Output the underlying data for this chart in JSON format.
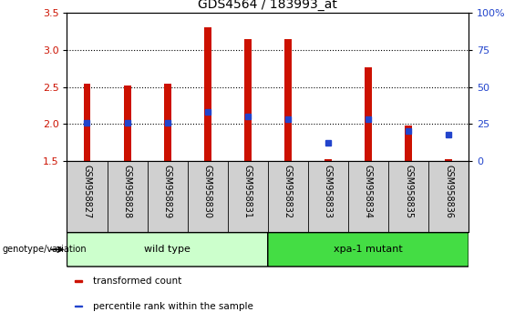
{
  "title": "GDS4564 / 183993_at",
  "samples": [
    "GSM958827",
    "GSM958828",
    "GSM958829",
    "GSM958830",
    "GSM958831",
    "GSM958832",
    "GSM958833",
    "GSM958834",
    "GSM958835",
    "GSM958836"
  ],
  "transformed_count": [
    2.55,
    2.52,
    2.55,
    3.3,
    3.15,
    3.15,
    1.53,
    2.76,
    1.98,
    1.53
  ],
  "percentile_values": [
    26,
    26,
    26,
    33,
    30,
    28,
    12,
    28,
    20,
    18
  ],
  "bar_bottom": 1.5,
  "ylim_left": [
    1.5,
    3.5
  ],
  "ylim_right": [
    0,
    100
  ],
  "yticks_left": [
    1.5,
    2.0,
    2.5,
    3.0,
    3.5
  ],
  "yticks_right": [
    0,
    25,
    50,
    75,
    100
  ],
  "bar_color": "#cc1100",
  "blue_color": "#2244cc",
  "groups": [
    {
      "label": "wild type",
      "start": 0,
      "end": 5,
      "color": "#ccffcc"
    },
    {
      "label": "xpa-1 mutant",
      "start": 5,
      "end": 10,
      "color": "#44dd44"
    }
  ],
  "genotype_label": "genotype/variation",
  "legend_items": [
    {
      "color": "#cc1100",
      "label": "transformed count"
    },
    {
      "color": "#2244cc",
      "label": "percentile rank within the sample"
    }
  ],
  "bg_color": "#d0d0d0",
  "bar_width": 0.18
}
